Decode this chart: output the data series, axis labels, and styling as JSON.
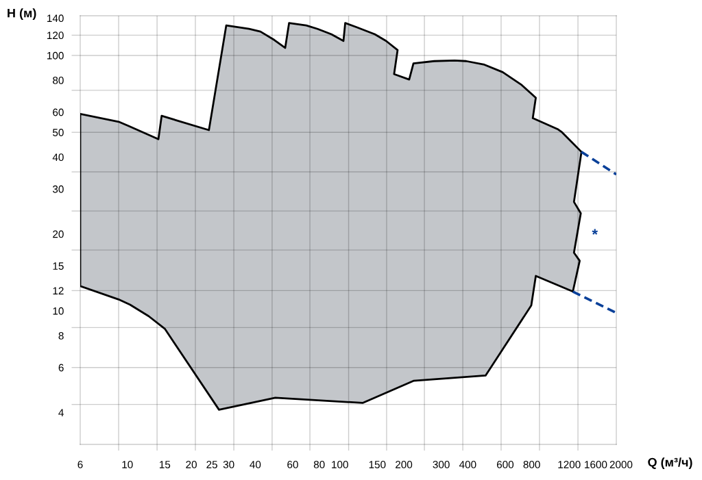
{
  "chart_data": {
    "type": "area",
    "xlabel": "Q (м³/ч)",
    "ylabel": "H (м)",
    "log": "xy",
    "xlim": [
      6,
      2000
    ],
    "ylim": [
      3,
      143
    ],
    "xticks": [
      6,
      10,
      15,
      20,
      25,
      30,
      40,
      60,
      80,
      100,
      150,
      200,
      300,
      400,
      600,
      800,
      1200,
      1600,
      2000,
      {
        "value": 9.1,
        "label": null
      },
      {
        "value": 13.8,
        "label": null
      },
      {
        "value": 20.9,
        "label": null
      },
      {
        "value": 31.7,
        "label": null
      },
      {
        "value": 48,
        "label": null
      },
      {
        "value": 72.3,
        "label": null
      },
      {
        "value": 110,
        "label": null
      },
      {
        "value": 166,
        "label": null
      },
      {
        "value": 250,
        "label": null
      },
      {
        "value": 379,
        "label": null
      },
      {
        "value": 574,
        "label": null
      },
      {
        "value": 870,
        "label": null
      },
      {
        "value": 1320,
        "label": null
      }
    ],
    "yticks": [
      140,
      120,
      100,
      80,
      60,
      50,
      40,
      30,
      20,
      15,
      12,
      10,
      8,
      6,
      4,
      {
        "value": 120,
        "label": null
      },
      {
        "value": 100,
        "label": null
      },
      {
        "value": 73,
        "label": null
      },
      {
        "value": 50,
        "label": null
      },
      {
        "value": 35,
        "label": null
      },
      {
        "value": 24.6,
        "label": null
      },
      {
        "value": 17.3,
        "label": null
      },
      {
        "value": 12,
        "label": null
      },
      {
        "value": 8.6,
        "label": null
      },
      {
        "value": 6,
        "label": null
      },
      {
        "value": 4.3,
        "label": null
      }
    ],
    "grid": true,
    "series": [
      {
        "color": "#c3c6ca",
        "x": [
          6,
          9.1,
          10.1,
          14.0,
          14.5,
          24.2,
          29.2,
          37.4,
          42.3,
          49.1,
          55.3,
          57.7,
          69.5,
          78.6,
          91.2,
          104,
          106,
          120,
          146,
          165,
          187,
          180,
          212,
          222,
          278,
          347,
          393,
          479,
          584,
          712,
          836,
          809,
          1057,
          1111,
          1227,
          1371,
          1264,
          1361,
          1264,
          1345,
          1249,
          836,
          796,
          485,
          222,
          128,
          49.7,
          27.0,
          15.0,
          12.6,
          10.3,
          9.1,
          6
        ],
        "values": [
          59,
          55,
          53,
          47,
          58,
          51,
          131,
          127,
          124,
          115,
          107,
          134,
          131,
          127,
          121,
          114,
          134,
          129,
          121,
          114,
          105,
          84.5,
          80.5,
          93,
          95,
          95.5,
          95,
          92,
          86,
          77,
          68.3,
          56.8,
          51.5,
          50,
          46,
          41.9,
          26.7,
          24.1,
          16.9,
          15.7,
          11.9,
          13.7,
          10.5,
          5.58,
          5.32,
          4.36,
          4.57,
          4.1,
          8.51,
          9.53,
          10.57,
          11.08,
          12.5
        ]
      },
      {
        "type": "line",
        "line_style": "dashed",
        "color": "#0a4099",
        "x": [
          1371,
          2000
        ],
        "values": [
          41.9,
          34.2
        ]
      },
      {
        "type": "line",
        "line_style": "dashed",
        "color": "#0a4099",
        "x": [
          1249,
          2000
        ],
        "values": [
          11.9,
          9.81
        ]
      }
    ],
    "annotations": [
      "*"
    ]
  }
}
